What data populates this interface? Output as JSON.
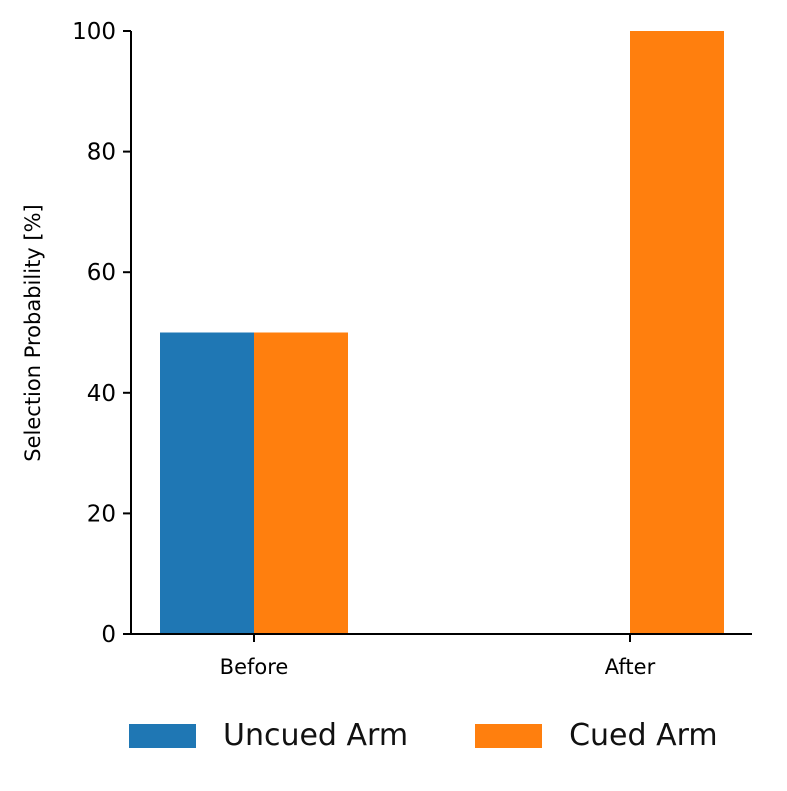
{
  "chart_data": {
    "type": "bar",
    "categories": [
      "Before",
      "After"
    ],
    "series": [
      {
        "name": "Uncued Arm",
        "values": [
          50,
          0
        ],
        "color": "#1f77b4"
      },
      {
        "name": "Cued Arm",
        "values": [
          50,
          100
        ],
        "color": "#ff7f0e"
      }
    ],
    "ylabel": "Selection Probability [%]",
    "xlabel": "",
    "ylim": [
      0,
      100
    ],
    "yticks": [
      0,
      20,
      40,
      60,
      80,
      100
    ],
    "grid": false,
    "legend_position": "bottom"
  }
}
